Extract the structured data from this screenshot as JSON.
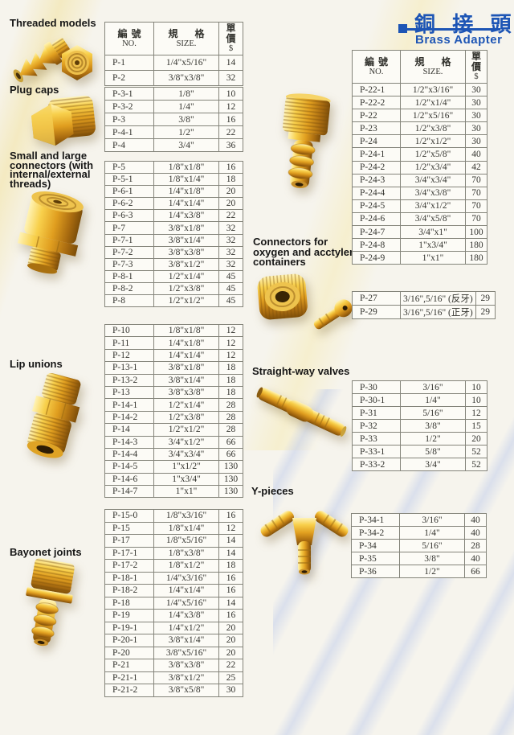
{
  "title": {
    "zh": "銅 接 頭",
    "en": "Brass Adapter"
  },
  "table_header": {
    "no_zh": "編 號",
    "no_en": "NO.",
    "size_zh": "規 格",
    "size_en": "SIZE.",
    "price_zh": "單 價",
    "price_en": "$"
  },
  "colors": {
    "accent_blue": "#1d55b5",
    "brass_gold": "#dd9a1d"
  },
  "photos": {
    "threaded_models": "brass-hose-barb-and-hex-nut-photo",
    "plug_caps": "brass-hex-plug-cap-photo",
    "small_large_connectors": "brass-internal-external-connector-photo",
    "lip_unions": "brass-hex-nipple-union-photo",
    "bayonet_joints": "brass-bayonet-joint-photo",
    "middle_fitting": "brass-threaded-barb-fitting-photo",
    "oxygen_connectors": "brass-cylinder-nut-and-barb-photo",
    "straight_way_valves": "brass-straight-valve-photo",
    "y_pieces": "brass-y-piece-photo"
  },
  "sections": {
    "threaded_models": {
      "label": "Threaded models",
      "rows": [
        [
          "P-1",
          "1/4\"x5/16\"",
          "14"
        ],
        [
          "P-2",
          "3/8\"x3/8\"",
          "32"
        ]
      ]
    },
    "plug_caps": {
      "label": "Plug caps",
      "rows": [
        [
          "P-3-1",
          "1/8\"",
          "10"
        ],
        [
          "P-3-2",
          "1/4\"",
          "12"
        ],
        [
          "P-3",
          "3/8\"",
          "16"
        ],
        [
          "P-4-1",
          "1/2\"",
          "22"
        ],
        [
          "P-4",
          "3/4\"",
          "36"
        ]
      ]
    },
    "small_large_connectors": {
      "label": "Small and large connectors (with internal/external threads)",
      "rows": [
        [
          "P-5",
          "1/8\"x1/8\"",
          "16"
        ],
        [
          "P-5-1",
          "1/8\"x1/4\"",
          "18"
        ],
        [
          "P-6-1",
          "1/4\"x1/8\"",
          "20"
        ],
        [
          "P-6-2",
          "1/4\"x1/4\"",
          "20"
        ],
        [
          "P-6-3",
          "1/4\"x3/8\"",
          "22"
        ],
        [
          "P-7",
          "3/8\"x1/8\"",
          "32"
        ],
        [
          "P-7-1",
          "3/8\"x1/4\"",
          "32"
        ],
        [
          "P-7-2",
          "3/8\"x3/8\"",
          "32"
        ],
        [
          "P-7-3",
          "3/8\"x1/2\"",
          "32"
        ],
        [
          "P-8-1",
          "1/2\"x1/4\"",
          "45"
        ],
        [
          "P-8-2",
          "1/2\"x3/8\"",
          "45"
        ],
        [
          "P-8",
          "1/2\"x1/2\"",
          "45"
        ]
      ]
    },
    "lip_unions": {
      "label": "Lip unions",
      "rows": [
        [
          "P-10",
          "1/8\"x1/8\"",
          "12"
        ],
        [
          "P-11",
          "1/4\"x1/8\"",
          "12"
        ],
        [
          "P-12",
          "1/4\"x1/4\"",
          "12"
        ],
        [
          "P-13-1",
          "3/8\"x1/8\"",
          "18"
        ],
        [
          "P-13-2",
          "3/8\"x1/4\"",
          "18"
        ],
        [
          "P-13",
          "3/8\"x3/8\"",
          "18"
        ],
        [
          "P-14-1",
          "1/2\"x1/4\"",
          "28"
        ],
        [
          "P-14-2",
          "1/2\"x3/8\"",
          "28"
        ],
        [
          "P-14",
          "1/2\"x1/2\"",
          "28"
        ],
        [
          "P-14-3",
          "3/4\"x1/2\"",
          "66"
        ],
        [
          "P-14-4",
          "3/4\"x3/4\"",
          "66"
        ],
        [
          "P-14-5",
          "1\"x1/2\"",
          "130"
        ],
        [
          "P-14-6",
          "1\"x3/4\"",
          "130"
        ],
        [
          "P-14-7",
          "1\"x1\"",
          "130"
        ]
      ]
    },
    "bayonet_joints": {
      "label": "Bayonet joints",
      "rows": [
        [
          "P-15-0",
          "1/8\"x3/16\"",
          "16"
        ],
        [
          "P-15",
          "1/8\"x1/4\"",
          "12"
        ],
        [
          "P-17",
          "1/8\"x5/16\"",
          "14"
        ],
        [
          "P-17-1",
          "1/8\"x3/8\"",
          "14"
        ],
        [
          "P-17-2",
          "1/8\"x1/2\"",
          "18"
        ],
        [
          "P-18-1",
          "1/4\"x3/16\"",
          "16"
        ],
        [
          "P-18-2",
          "1/4\"x1/4\"",
          "16"
        ],
        [
          "P-18",
          "1/4\"x5/16\"",
          "14"
        ],
        [
          "P-19",
          "1/4\"x3/8\"",
          "16"
        ],
        [
          "P-19-1",
          "1/4\"x1/2\"",
          "20"
        ],
        [
          "P-20-1",
          "3/8\"x1/4\"",
          "20"
        ],
        [
          "P-20",
          "3/8\"x5/16\"",
          "20"
        ],
        [
          "P-21",
          "3/8\"x3/8\"",
          "22"
        ],
        [
          "P-21-1",
          "3/8\"x1/2\"",
          "25"
        ],
        [
          "P-21-2",
          "3/8\"x5/8\"",
          "30"
        ]
      ]
    },
    "brass_adapter": {
      "rows": [
        [
          "P-22-1",
          "1/2\"x3/16\"",
          "30"
        ],
        [
          "P-22-2",
          "1/2\"x1/4\"",
          "30"
        ],
        [
          "P-22",
          "1/2\"x5/16\"",
          "30"
        ],
        [
          "P-23",
          "1/2\"x3/8\"",
          "30"
        ],
        [
          "P-24",
          "1/2\"x1/2\"",
          "30"
        ],
        [
          "P-24-1",
          "1/2\"x5/8\"",
          "40"
        ],
        [
          "P-24-2",
          "1/2\"x3/4\"",
          "42"
        ],
        [
          "P-24-3",
          "3/4\"x3/4\"",
          "70"
        ],
        [
          "P-24-4",
          "3/4\"x3/8\"",
          "70"
        ],
        [
          "P-24-5",
          "3/4\"x1/2\"",
          "70"
        ],
        [
          "P-24-6",
          "3/4\"x5/8\"",
          "70"
        ],
        [
          "P-24-7",
          "3/4\"x1\"",
          "100"
        ],
        [
          "P-24-8",
          "1\"x3/4\"",
          "180"
        ],
        [
          "P-24-9",
          "1\"x1\"",
          "180"
        ]
      ]
    },
    "oxygen_connectors": {
      "label": "Connectors for oxygen and acctylene containers",
      "rows": [
        [
          "P-27",
          "3/16\",5/16\" (反牙)",
          "29"
        ],
        [
          "P-29",
          "3/16\",5/16\" (正牙)",
          "29"
        ]
      ]
    },
    "straight_way_valves": {
      "label": "Straight-way valves",
      "rows": [
        [
          "P-30",
          "3/16\"",
          "10"
        ],
        [
          "P-30-1",
          "1/4\"",
          "10"
        ],
        [
          "P-31",
          "5/16\"",
          "12"
        ],
        [
          "P-32",
          "3/8\"",
          "15"
        ],
        [
          "P-33",
          "1/2\"",
          "20"
        ],
        [
          "P-33-1",
          "5/8\"",
          "52"
        ],
        [
          "P-33-2",
          "3/4\"",
          "52"
        ]
      ]
    },
    "y_pieces": {
      "label": "Y-pieces",
      "rows": [
        [
          "P-34-1",
          "3/16\"",
          "40"
        ],
        [
          "P-34-2",
          "1/4\"",
          "40"
        ],
        [
          "P-34",
          "5/16\"",
          "28"
        ],
        [
          "P-35",
          "3/8\"",
          "40"
        ],
        [
          "P-36",
          "1/2\"",
          "66"
        ]
      ]
    }
  }
}
